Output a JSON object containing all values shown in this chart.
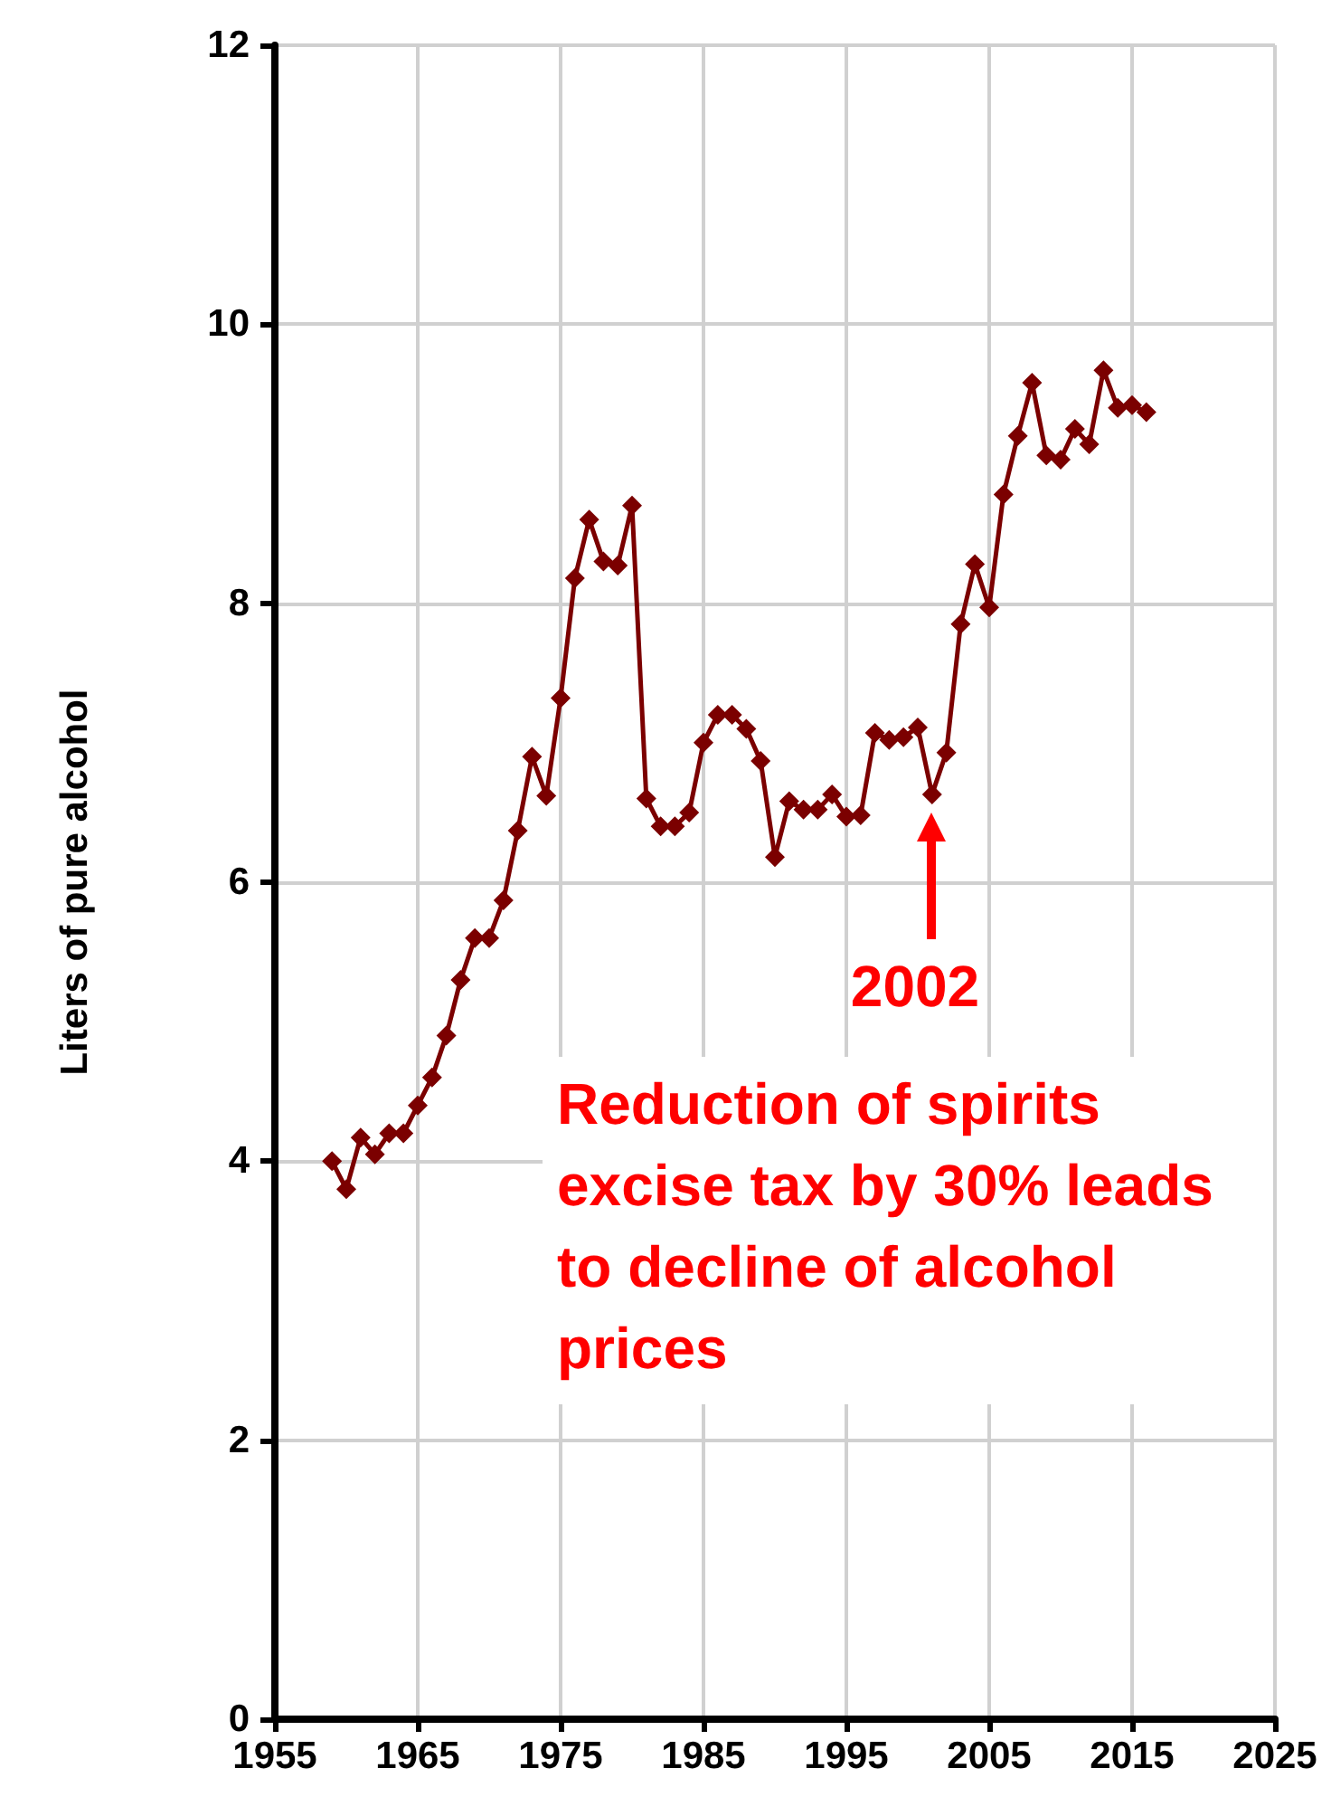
{
  "chart_data": {
    "type": "line",
    "ylabel": "Liters of pure alcohol",
    "x": [
      1959,
      1960,
      1961,
      1962,
      1963,
      1964,
      1965,
      1966,
      1967,
      1968,
      1969,
      1970,
      1971,
      1972,
      1973,
      1974,
      1975,
      1976,
      1977,
      1978,
      1979,
      1980,
      1981,
      1982,
      1983,
      1984,
      1985,
      1986,
      1987,
      1988,
      1989,
      1990,
      1991,
      1992,
      1993,
      1994,
      1995,
      1996,
      1997,
      1998,
      1999,
      2000,
      2001,
      2002,
      2003,
      2004,
      2005,
      2006,
      2007,
      2008,
      2009,
      2010,
      2011,
      2012,
      2013,
      2014,
      2015,
      2016
    ],
    "series": [
      {
        "color": "#7b0000",
        "values": [
          4.0,
          3.8,
          4.17,
          4.05,
          4.2,
          4.2,
          4.4,
          4.6,
          4.9,
          5.3,
          5.6,
          5.6,
          5.87,
          6.37,
          6.9,
          6.62,
          7.32,
          8.18,
          8.6,
          8.3,
          8.27,
          8.7,
          6.6,
          6.4,
          6.4,
          6.5,
          7.0,
          7.2,
          7.2,
          7.1,
          6.87,
          6.18,
          6.58,
          6.52,
          6.52,
          6.63,
          6.47,
          6.48,
          7.07,
          7.02,
          7.04,
          7.11,
          6.63,
          6.93,
          7.85,
          8.28,
          7.97,
          8.78,
          9.2,
          9.58,
          9.06,
          9.03,
          9.25,
          9.14,
          9.67,
          9.4,
          9.42,
          9.37
        ]
      }
    ],
    "xlim": [
      1955,
      2025
    ],
    "xticks": [
      1955,
      1965,
      1975,
      1985,
      1995,
      2005,
      2015,
      2025
    ],
    "ylim": [
      0,
      12
    ],
    "yticks": [
      0,
      2,
      4,
      6,
      8,
      10,
      12
    ],
    "grid": true,
    "marker": "diamond",
    "line_style": "solid",
    "annotations": [
      {
        "text": "2002",
        "x": 2001,
        "y": 6.63
      },
      "Reduction of spirits excise tax by 30% leads to decline of alcohol prices"
    ]
  }
}
